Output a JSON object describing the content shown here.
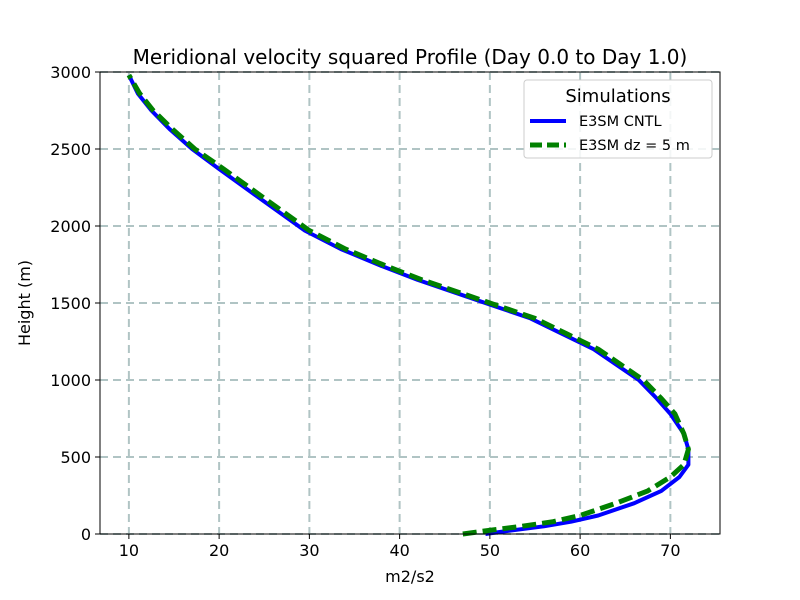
{
  "chart_data": {
    "type": "line",
    "title": "Meridional velocity squared Profile (Day 0.0 to Day 1.0)",
    "xlabel": "m2/s2",
    "ylabel": "Height (m)",
    "xlim": [
      6.8,
      75.5
    ],
    "ylim": [
      0,
      3000
    ],
    "xticks": [
      10,
      20,
      30,
      40,
      50,
      60,
      70
    ],
    "yticks": [
      0,
      500,
      1000,
      1500,
      2000,
      2500,
      3000
    ],
    "grid": true,
    "legend": {
      "title": "Simulations",
      "placement": "top-right"
    },
    "series": [
      {
        "name": "E3SM CNTL",
        "color": "#0000ff",
        "style": "solid",
        "points": [
          [
            49.5,
            0
          ],
          [
            52,
            20
          ],
          [
            56,
            50
          ],
          [
            59,
            80
          ],
          [
            62,
            120
          ],
          [
            66,
            200
          ],
          [
            69,
            280
          ],
          [
            71,
            370
          ],
          [
            72,
            450
          ],
          [
            72,
            550
          ],
          [
            71.5,
            650
          ],
          [
            70,
            780
          ],
          [
            68.5,
            880
          ],
          [
            66.5,
            1000
          ],
          [
            64,
            1100
          ],
          [
            61.5,
            1200
          ],
          [
            58,
            1300
          ],
          [
            54.5,
            1400
          ],
          [
            50.5,
            1480
          ],
          [
            46,
            1570
          ],
          [
            42,
            1650
          ],
          [
            38,
            1740
          ],
          [
            33.5,
            1850
          ],
          [
            29.5,
            1970
          ],
          [
            24.5,
            2180
          ],
          [
            20,
            2370
          ],
          [
            17,
            2500
          ],
          [
            14.5,
            2630
          ],
          [
            12.5,
            2750
          ],
          [
            11,
            2860
          ],
          [
            10,
            2980
          ]
        ]
      },
      {
        "name": "E3SM dz = 5 m",
        "color": "#008000",
        "style": "dashed",
        "points": [
          [
            47,
            0
          ],
          [
            49.5,
            20
          ],
          [
            53.5,
            50
          ],
          [
            57,
            80
          ],
          [
            60,
            120
          ],
          [
            64,
            200
          ],
          [
            67.5,
            280
          ],
          [
            70,
            370
          ],
          [
            71.5,
            450
          ],
          [
            72,
            550
          ],
          [
            71.5,
            650
          ],
          [
            70.5,
            780
          ],
          [
            69,
            880
          ],
          [
            67,
            1000
          ],
          [
            64.5,
            1100
          ],
          [
            62,
            1200
          ],
          [
            58.5,
            1300
          ],
          [
            55,
            1400
          ],
          [
            51,
            1480
          ],
          [
            46.5,
            1570
          ],
          [
            42.5,
            1650
          ],
          [
            38.5,
            1740
          ],
          [
            34,
            1850
          ],
          [
            30,
            1970
          ],
          [
            25,
            2180
          ],
          [
            20.5,
            2370
          ],
          [
            17.3,
            2500
          ],
          [
            14.8,
            2630
          ],
          [
            12.7,
            2750
          ],
          [
            11.2,
            2860
          ],
          [
            10,
            2980
          ]
        ]
      }
    ]
  }
}
